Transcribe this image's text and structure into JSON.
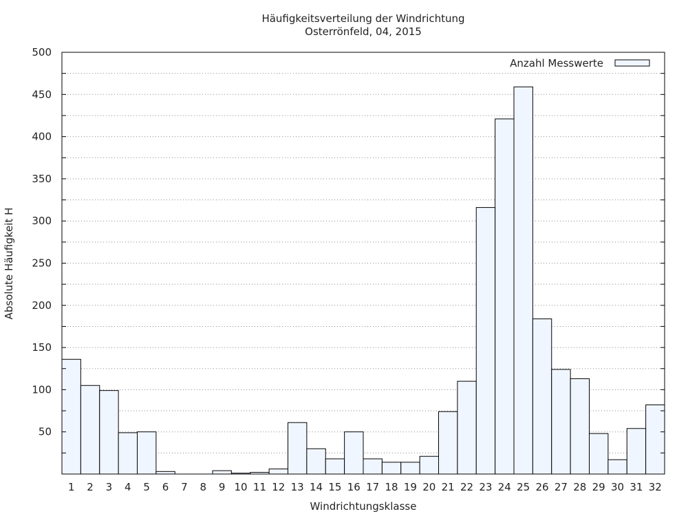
{
  "chart_data": {
    "type": "bar",
    "title": "Häufigkeitsverteilung der Windrichtung",
    "subtitle": "Osterrönfeld, 04, 2015",
    "xlabel": "Windrichtungsklasse",
    "ylabel": "Absolute Häufigkeit H",
    "ylim": [
      0,
      500
    ],
    "yticks": [
      "50",
      "100",
      "150",
      "200",
      "250",
      "300",
      "350",
      "400",
      "450",
      "500"
    ],
    "grid": true,
    "legend_position": "top-right",
    "categories": [
      "1",
      "2",
      "3",
      "4",
      "5",
      "6",
      "7",
      "8",
      "9",
      "10",
      "11",
      "12",
      "13",
      "14",
      "15",
      "16",
      "17",
      "18",
      "19",
      "20",
      "21",
      "22",
      "23",
      "24",
      "25",
      "26",
      "27",
      "28",
      "29",
      "30",
      "31",
      "32"
    ],
    "series": [
      {
        "name": "Anzahl Messwerte",
        "values": [
          136,
          105,
          99,
          49,
          50,
          3,
          0,
          0,
          4,
          1,
          2,
          6,
          61,
          30,
          18,
          50,
          18,
          14,
          14,
          21,
          74,
          110,
          316,
          421,
          459,
          184,
          124,
          113,
          48,
          17,
          54,
          82
        ]
      }
    ],
    "colors": {
      "bar_fill": "#f0f6ff",
      "bar_stroke": "#000000",
      "grid": "#888888"
    }
  }
}
